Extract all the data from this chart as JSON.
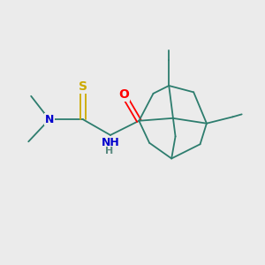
{
  "bg_color": "#ebebeb",
  "bond_color": "#2d7d6e",
  "bond_width": 1.3,
  "atom_colors": {
    "N": "#0000cc",
    "O": "#ff0000",
    "S": "#ccaa00",
    "C": "#2d7d6e",
    "H": "#5a8a80"
  },
  "font_size": 9,
  "figsize": [
    3.0,
    3.0
  ],
  "dpi": 100,
  "xlim": [
    0,
    10
  ],
  "ylim": [
    0,
    10
  ]
}
